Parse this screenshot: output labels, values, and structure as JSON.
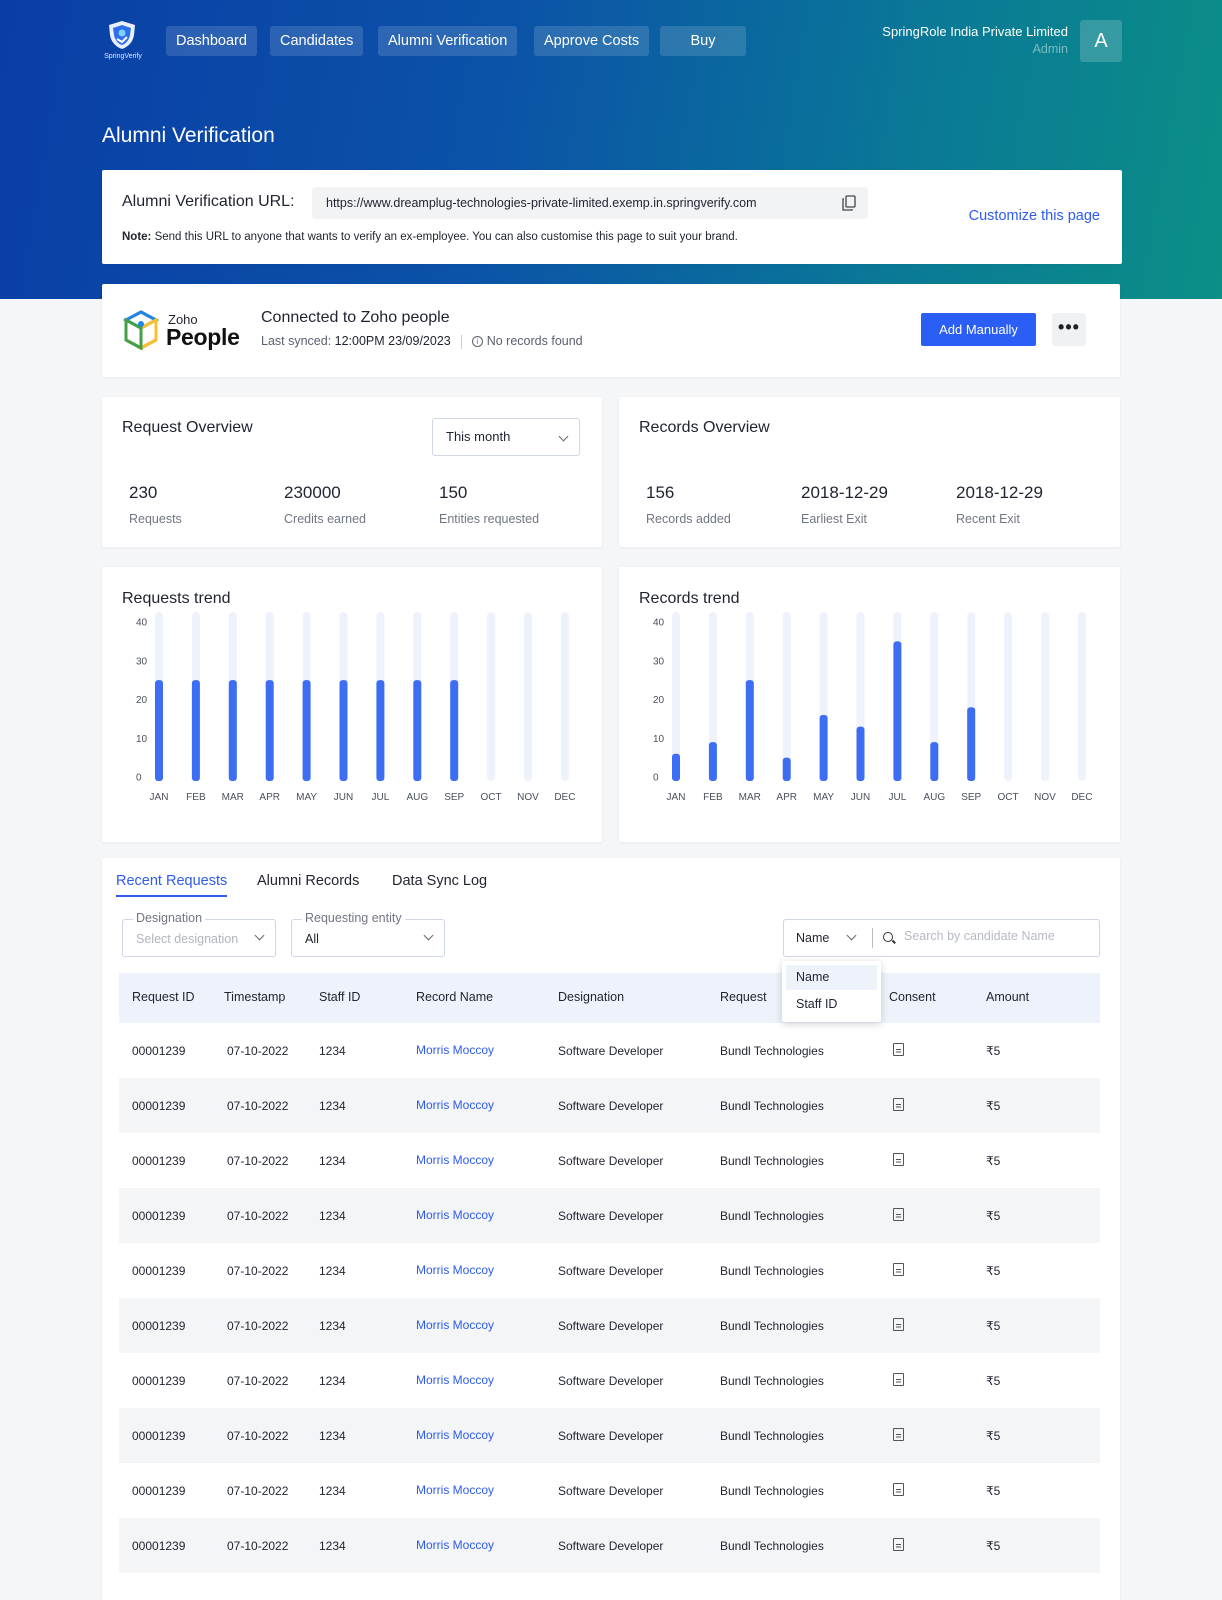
{
  "app": {
    "logo_text": "SpringVerify",
    "nav": [
      "Dashboard",
      "Candidates",
      "Alumni Verification",
      "Approve Costs",
      "Buy"
    ],
    "org_name": "SpringRole India Private Limited",
    "role": "Admin",
    "avatar_letter": "A"
  },
  "page_title": "Alumni Verification",
  "url_card": {
    "label": "Alumni Verification URL:",
    "url": "https://www.dreamplug-technologies-private-limited.exemp.in.springverify.com",
    "note_prefix": "Note:",
    "note_text": " Send this URL to anyone that wants to verify an ex-employee. You can also customise this page to suit your brand.",
    "customize_link": "Customize this page"
  },
  "integration": {
    "logo_small": "Zoho",
    "logo_large": "People",
    "title": "Connected to Zoho people",
    "last_synced_label": "Last synced: ",
    "last_synced_value": "12:00PM 23/09/2023",
    "status": "No records found",
    "add_button": "Add Manually",
    "more_label": "•••"
  },
  "request_overview": {
    "title": "Request Overview",
    "period": "This month",
    "stats": [
      {
        "value": "230",
        "label": "Requests"
      },
      {
        "value": "230000",
        "label": "Credits earned"
      },
      {
        "value": "150",
        "label": "Entities requested"
      }
    ]
  },
  "records_overview": {
    "title": "Records Overview",
    "stats": [
      {
        "value": "156",
        "label": "Records added"
      },
      {
        "value": "2018-12-29",
        "label": "Earliest Exit"
      },
      {
        "value": "2018-12-29",
        "label": "Recent Exit"
      }
    ]
  },
  "chart_data": [
    {
      "type": "bar",
      "title": "Requests trend",
      "categories": [
        "JAN",
        "FEB",
        "MAR",
        "APR",
        "MAY",
        "JUN",
        "JUL",
        "AUG",
        "SEP",
        "OCT",
        "NOV",
        "DEC"
      ],
      "values": [
        25,
        25,
        25,
        25,
        25,
        25,
        25,
        25,
        25,
        0,
        0,
        0
      ],
      "ylim": [
        0,
        40
      ],
      "yticks": [
        0,
        10,
        20,
        30,
        40
      ],
      "color": "#3d6df2",
      "track_color": "#eef2fb"
    },
    {
      "type": "bar",
      "title": "Records trend",
      "categories": [
        "JAN",
        "FEB",
        "MAR",
        "APR",
        "MAY",
        "JUN",
        "JUL",
        "AUG",
        "SEP",
        "OCT",
        "NOV",
        "DEC"
      ],
      "values": [
        6,
        9,
        25,
        5,
        16,
        13,
        35,
        9,
        18,
        0,
        0,
        0
      ],
      "ylim": [
        0,
        40
      ],
      "yticks": [
        0,
        10,
        20,
        30,
        40
      ],
      "color": "#3d6df2",
      "track_color": "#eef2fb"
    }
  ],
  "requests": {
    "tabs": [
      "Recent Requests",
      "Alumni Records",
      "Data Sync Log"
    ],
    "filters": {
      "designation_label": "Designation",
      "designation_placeholder": "Select designation",
      "entity_label": "Requesting entity",
      "entity_value": "All",
      "search_by": "Name",
      "search_placeholder": "Search by candidate Name",
      "search_options": [
        "Name",
        "Staff ID"
      ]
    },
    "columns": [
      "Request ID",
      "Timestamp",
      "Staff ID",
      "Record Name",
      "Designation",
      "Request",
      "Consent",
      "Amount"
    ],
    "rows": [
      {
        "id": "00001239",
        "timestamp": "07-10-2022",
        "staff_id": "1234",
        "name": "Morris Moccoy",
        "designation": "Software Developer",
        "entity": "Bundl Technologies",
        "amount": "₹5"
      },
      {
        "id": "00001239",
        "timestamp": "07-10-2022",
        "staff_id": "1234",
        "name": "Morris Moccoy",
        "designation": "Software Developer",
        "entity": "Bundl Technologies",
        "amount": "₹5"
      },
      {
        "id": "00001239",
        "timestamp": "07-10-2022",
        "staff_id": "1234",
        "name": "Morris Moccoy",
        "designation": "Software Developer",
        "entity": "Bundl Technologies",
        "amount": "₹5"
      },
      {
        "id": "00001239",
        "timestamp": "07-10-2022",
        "staff_id": "1234",
        "name": "Morris Moccoy",
        "designation": "Software Developer",
        "entity": "Bundl Technologies",
        "amount": "₹5"
      },
      {
        "id": "00001239",
        "timestamp": "07-10-2022",
        "staff_id": "1234",
        "name": "Morris Moccoy",
        "designation": "Software Developer",
        "entity": "Bundl Technologies",
        "amount": "₹5"
      },
      {
        "id": "00001239",
        "timestamp": "07-10-2022",
        "staff_id": "1234",
        "name": "Morris Moccoy",
        "designation": "Software Developer",
        "entity": "Bundl Technologies",
        "amount": "₹5"
      },
      {
        "id": "00001239",
        "timestamp": "07-10-2022",
        "staff_id": "1234",
        "name": "Morris Moccoy",
        "designation": "Software Developer",
        "entity": "Bundl Technologies",
        "amount": "₹5"
      },
      {
        "id": "00001239",
        "timestamp": "07-10-2022",
        "staff_id": "1234",
        "name": "Morris Moccoy",
        "designation": "Software Developer",
        "entity": "Bundl Technologies",
        "amount": "₹5"
      },
      {
        "id": "00001239",
        "timestamp": "07-10-2022",
        "staff_id": "1234",
        "name": "Morris Moccoy",
        "designation": "Software Developer",
        "entity": "Bundl Technologies",
        "amount": "₹5"
      },
      {
        "id": "00001239",
        "timestamp": "07-10-2022",
        "staff_id": "1234",
        "name": "Morris Moccoy",
        "designation": "Software Developer",
        "entity": "Bundl Technologies",
        "amount": "₹5"
      }
    ]
  }
}
